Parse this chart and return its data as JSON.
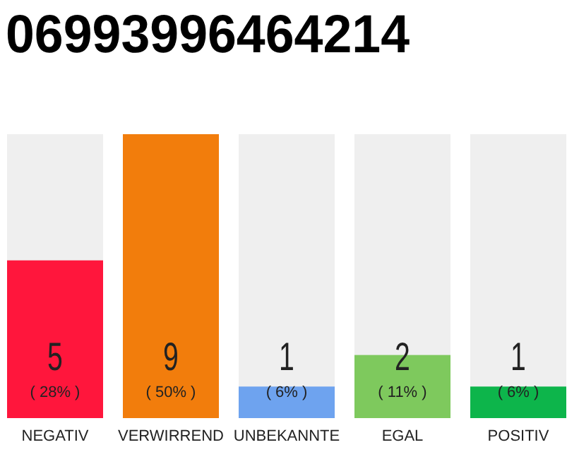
{
  "chart_data": {
    "type": "bar",
    "title": "06993996464214",
    "categories": [
      "NEGATIV",
      "VERWIRREND",
      "UNBEKANNTE",
      "EGAL",
      "POSITIV"
    ],
    "values": [
      5,
      9,
      1,
      2,
      1
    ],
    "colors": [
      "#ff163c",
      "#f27d0c",
      "#6ea3ef",
      "#7ec95d",
      "#0db54b"
    ],
    "ylim": [
      0,
      9
    ],
    "data_labels": true,
    "annotations": [
      "( 28% )",
      "( 50% )",
      "( 6% )",
      "( 11% )",
      "( 6% )"
    ]
  }
}
